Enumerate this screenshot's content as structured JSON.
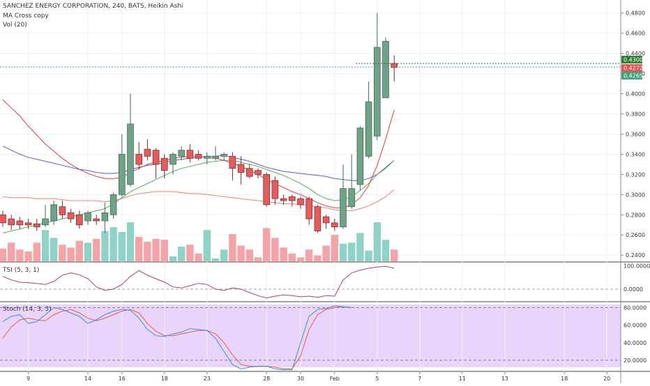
{
  "chart_data": {
    "type": "candlestick",
    "title": "SANCHEZ ENERGY CORPORATION, 240, BATS, Heikin Ashi",
    "indicators": [
      "MA Cross copy",
      "Vol (20)"
    ],
    "price_axis": {
      "range": [
        0.236,
        0.486
      ],
      "ticks": [
        "0.4800",
        "0.4600",
        "0.4400",
        "0.4200",
        "0.4000",
        "0.3800",
        "0.3600",
        "0.3400",
        "0.3200",
        "0.3000",
        "0.2800",
        "0.2600",
        "0.2400"
      ]
    },
    "price_tags": [
      {
        "label": "0.4300",
        "value": 0.43,
        "color": "#2e7d32"
      },
      {
        "label": "0.4272",
        "value": 0.4272,
        "color": "#e05252"
      },
      {
        "label": "0.4265",
        "value": 0.4265,
        "color": "#3fa27a"
      }
    ],
    "x_axis_labels": [
      {
        "label": "9",
        "i": 3
      },
      {
        "label": "14",
        "i": 10
      },
      {
        "label": "16",
        "i": 14
      },
      {
        "label": "18",
        "i": 19
      },
      {
        "label": "23",
        "i": 24
      },
      {
        "label": "28",
        "i": 31
      },
      {
        "label": "30",
        "i": 35
      },
      {
        "label": "Feb",
        "i": 39
      },
      {
        "label": "5",
        "i": 44
      },
      {
        "label": "7",
        "i": 49
      },
      {
        "label": "11",
        "i": 54
      },
      {
        "label": "13",
        "i": 59
      },
      {
        "label": "18",
        "i": 66
      },
      {
        "label": "20",
        "i": 71
      }
    ],
    "candles": [
      [
        0.28,
        0.272,
        0.284,
        0.268
      ],
      [
        0.276,
        0.27,
        0.28,
        0.265
      ],
      [
        0.274,
        0.27,
        0.278,
        0.266
      ],
      [
        0.272,
        0.27,
        0.276,
        0.266
      ],
      [
        0.271,
        0.268,
        0.276,
        0.264
      ],
      [
        0.27,
        0.276,
        0.29,
        0.268
      ],
      [
        0.274,
        0.29,
        0.294,
        0.27
      ],
      [
        0.288,
        0.28,
        0.294,
        0.276
      ],
      [
        0.282,
        0.276,
        0.286,
        0.272
      ],
      [
        0.28,
        0.27,
        0.284,
        0.266
      ],
      [
        0.274,
        0.282,
        0.284,
        0.27
      ],
      [
        0.276,
        0.274,
        0.28,
        0.27
      ],
      [
        0.274,
        0.282,
        0.292,
        0.262
      ],
      [
        0.28,
        0.3,
        0.302,
        0.276
      ],
      [
        0.3,
        0.34,
        0.36,
        0.298
      ],
      [
        0.31,
        0.37,
        0.4,
        0.308
      ],
      [
        0.34,
        0.33,
        0.352,
        0.325
      ],
      [
        0.345,
        0.338,
        0.355,
        0.334
      ],
      [
        0.344,
        0.33,
        0.346,
        0.316
      ],
      [
        0.336,
        0.324,
        0.34,
        0.316
      ],
      [
        0.33,
        0.34,
        0.342,
        0.32
      ],
      [
        0.338,
        0.344,
        0.348,
        0.334
      ],
      [
        0.344,
        0.336,
        0.35,
        0.332
      ],
      [
        0.34,
        0.336,
        0.344,
        0.334
      ],
      [
        0.336,
        0.338,
        0.342,
        0.33
      ],
      [
        0.336,
        0.338,
        0.348,
        0.334
      ],
      [
        0.338,
        0.34,
        0.342,
        0.334
      ],
      [
        0.338,
        0.326,
        0.342,
        0.314
      ],
      [
        0.33,
        0.322,
        0.338,
        0.31
      ],
      [
        0.326,
        0.318,
        0.33,
        0.316
      ],
      [
        0.324,
        0.32,
        0.326,
        0.316
      ],
      [
        0.32,
        0.29,
        0.322,
        0.288
      ],
      [
        0.314,
        0.296,
        0.318,
        0.29
      ],
      [
        0.296,
        0.294,
        0.3,
        0.29
      ],
      [
        0.298,
        0.294,
        0.3,
        0.288
      ],
      [
        0.296,
        0.29,
        0.298,
        0.286
      ],
      [
        0.296,
        0.276,
        0.298,
        0.27
      ],
      [
        0.288,
        0.264,
        0.29,
        0.262
      ],
      [
        0.278,
        0.272,
        0.28,
        0.266
      ],
      [
        0.272,
        0.268,
        0.276,
        0.264
      ],
      [
        0.268,
        0.306,
        0.33,
        0.266
      ],
      [
        0.288,
        0.306,
        0.34,
        0.286
      ],
      [
        0.31,
        0.366,
        0.368,
        0.304
      ],
      [
        0.338,
        0.392,
        0.412,
        0.336
      ],
      [
        0.358,
        0.446,
        0.48,
        0.354
      ],
      [
        0.396,
        0.452,
        0.456,
        0.398
      ],
      [
        0.43,
        0.426,
        0.438,
        0.412
      ]
    ],
    "ma_red": [
      0.394,
      0.386,
      0.378,
      0.368,
      0.359,
      0.35,
      0.343,
      0.336,
      0.33,
      0.325,
      0.321,
      0.318,
      0.316,
      0.316,
      0.317,
      0.322,
      0.326,
      0.33,
      0.332,
      0.334,
      0.336,
      0.337,
      0.338,
      0.338,
      0.337,
      0.336,
      0.334,
      0.331,
      0.328,
      0.324,
      0.32,
      0.315,
      0.311,
      0.307,
      0.303,
      0.3,
      0.296,
      0.292,
      0.289,
      0.287,
      0.287,
      0.29,
      0.297,
      0.309,
      0.329,
      0.355,
      0.384
    ],
    "ma_blue": [
      0.348,
      0.344,
      0.34,
      0.337,
      0.335,
      0.333,
      0.331,
      0.329,
      0.327,
      0.325,
      0.324,
      0.322,
      0.321,
      0.321,
      0.322,
      0.325,
      0.327,
      0.329,
      0.33,
      0.332,
      0.334,
      0.335,
      0.336,
      0.337,
      0.338,
      0.338,
      0.339,
      0.337,
      0.335,
      0.333,
      0.33,
      0.327,
      0.325,
      0.323,
      0.322,
      0.321,
      0.32,
      0.319,
      0.318,
      0.316,
      0.315,
      0.314,
      0.314,
      0.316,
      0.32,
      0.327,
      0.334
    ],
    "ma_green": [
      0.262,
      0.264,
      0.266,
      0.268,
      0.27,
      0.272,
      0.274,
      0.276,
      0.278,
      0.28,
      0.282,
      0.284,
      0.286,
      0.291,
      0.297,
      0.303,
      0.307,
      0.311,
      0.315,
      0.319,
      0.323,
      0.326,
      0.328,
      0.33,
      0.332,
      0.333,
      0.334,
      0.334,
      0.332,
      0.33,
      0.328,
      0.325,
      0.322,
      0.319,
      0.315,
      0.311,
      0.306,
      0.3,
      0.296,
      0.294,
      0.295,
      0.298,
      0.304,
      0.311,
      0.32,
      0.326,
      0.334
    ],
    "ma_salmon": [
      0.298,
      0.297,
      0.297,
      0.297,
      0.296,
      0.296,
      0.296,
      0.295,
      0.294,
      0.294,
      0.294,
      0.294,
      0.293,
      0.294,
      0.296,
      0.299,
      0.301,
      0.302,
      0.303,
      0.303,
      0.303,
      0.302,
      0.301,
      0.301,
      0.3,
      0.299,
      0.298,
      0.297,
      0.296,
      0.295,
      0.294,
      0.293,
      0.292,
      0.291,
      0.291,
      0.29,
      0.289,
      0.288,
      0.287,
      0.285,
      0.284,
      0.284,
      0.286,
      0.289,
      0.293,
      0.298,
      0.305
    ],
    "volume_max": 4.0,
    "volume": [
      1.3,
      1.9,
      1.2,
      1.0,
      1.9,
      3.2,
      2.4,
      1.7,
      1.4,
      2.1,
      1.9,
      2.3,
      3.1,
      3.5,
      3.0,
      4.0,
      2.5,
      2.0,
      2.3,
      2.2,
      0.5,
      1.5,
      1.7,
      0.8,
      3.2,
      0.3,
      1.2,
      2.8,
      1.6,
      1.2,
      0.4,
      3.4,
      2.4,
      1.4,
      0.8,
      0.4,
      1.2,
      0.6,
      1.6,
      2.7,
      1.8,
      1.9,
      2.9,
      1.1,
      4.0,
      2.2,
      1.2
    ],
    "tsi": {
      "label": "TSI (5, 3, 1)",
      "range": [
        -0.45,
        1.05
      ],
      "ticks": [
        "100.0000",
        "0.0000"
      ],
      "values": [
        0.55,
        0.4,
        0.3,
        0.28,
        0.25,
        0.2,
        0.33,
        0.6,
        0.7,
        0.62,
        0.45,
        0.1,
        -0.05,
        0.0,
        0.2,
        0.55,
        0.8,
        0.6,
        0.45,
        0.3,
        0.1,
        0.05,
        0.15,
        0.25,
        0.2,
        0.0,
        -0.05,
        0.05,
        0.0,
        -0.15,
        -0.28,
        -0.38,
        -0.3,
        -0.25,
        -0.28,
        -0.33,
        -0.3,
        -0.35,
        -0.28,
        -0.3,
        0.4,
        0.7,
        0.82,
        0.9,
        0.95,
        0.98,
        0.9
      ]
    },
    "stoch": {
      "label": "Stoch (14, 3, 3)",
      "range": [
        8,
        86
      ],
      "ticks": [
        "80.0000",
        "60.0000",
        "40.0000",
        "20.0000"
      ],
      "k": [
        64,
        70,
        72,
        62,
        64,
        72,
        80,
        78,
        74,
        70,
        62,
        66,
        72,
        76,
        78,
        77,
        68,
        55,
        48,
        47,
        50,
        52,
        56,
        55,
        54,
        45,
        30,
        15,
        10,
        12,
        13,
        13,
        10,
        9,
        9,
        40,
        70,
        78,
        79,
        82,
        81,
        80
      ],
      "d": [
        45,
        58,
        66,
        68,
        66,
        65,
        72,
        76,
        78,
        74,
        68,
        65,
        68,
        72,
        76,
        78,
        74,
        62,
        53,
        48,
        48,
        50,
        52,
        54,
        54,
        50,
        40,
        26,
        15,
        13,
        13,
        13,
        12,
        10,
        10,
        25,
        55,
        72,
        78,
        80,
        81,
        80
      ]
    }
  }
}
